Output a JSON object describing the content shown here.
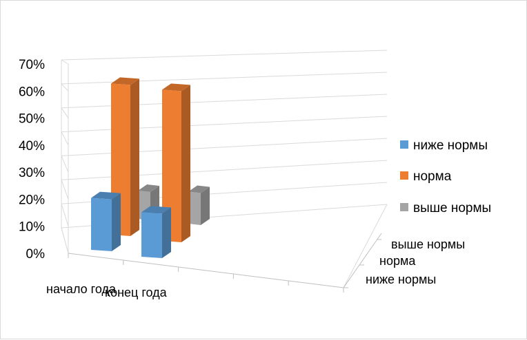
{
  "chart_data": {
    "type": "bar",
    "categories": [
      "начало года",
      "конец года"
    ],
    "series": [
      {
        "name": "ниже нормы",
        "values": [
          0.21,
          0.18
        ],
        "color": "#5B9BD5"
      },
      {
        "name": "норма",
        "values": [
          0.62,
          0.62
        ],
        "color": "#ED7D31"
      },
      {
        "name": "выше нормы",
        "values": [
          0.15,
          0.17
        ],
        "color": "#A5A5A5"
      }
    ],
    "depth_labels": [
      "выше нормы",
      "норма",
      "ниже нормы"
    ],
    "y_ticks": [
      "0%",
      "10%",
      "20%",
      "30%",
      "40%",
      "50%",
      "60%",
      "70%"
    ],
    "ylim": [
      0,
      0.7
    ],
    "grid": true,
    "legend_position": "right",
    "projection": "3d-perspective"
  }
}
